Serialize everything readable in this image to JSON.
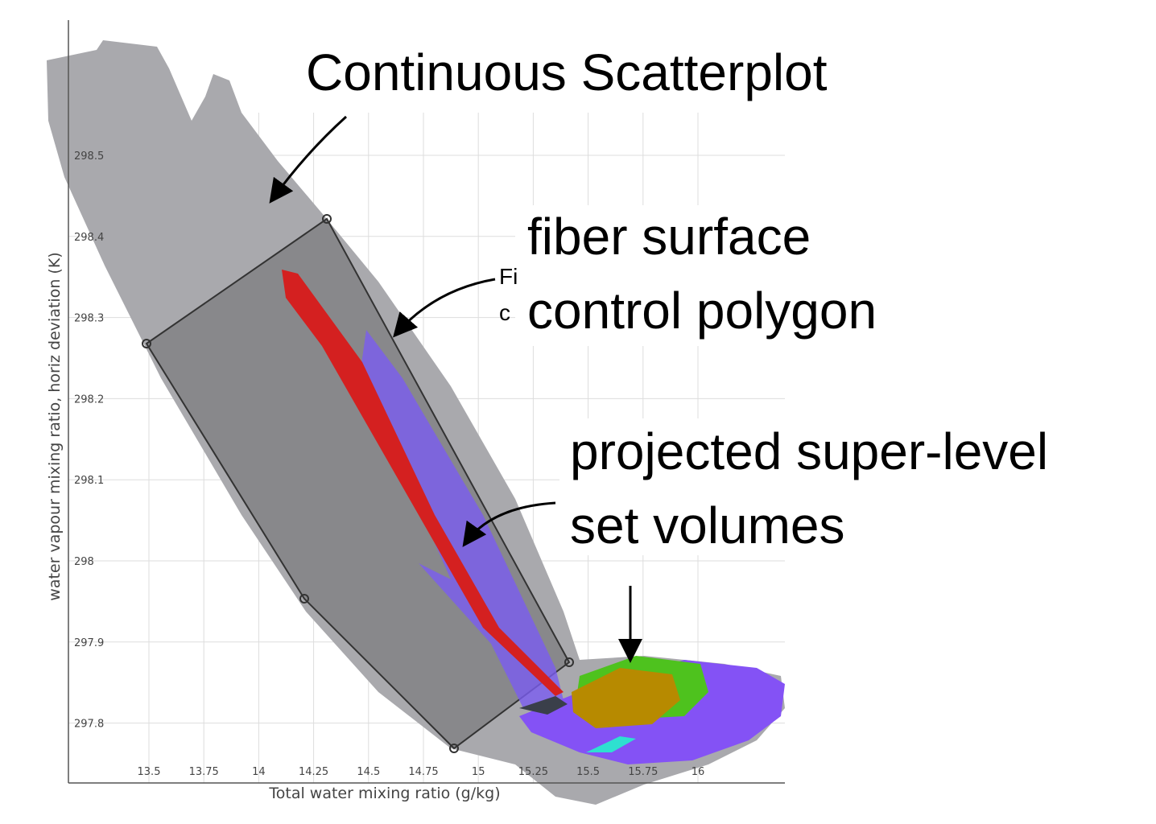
{
  "figure": {
    "x_axis": {
      "label": "Total water mixing ratio (g/kg)",
      "ticks": [
        "13.5",
        "13.75",
        "14",
        "14.25",
        "14.5",
        "14.75",
        "15",
        "15.25",
        "15.5",
        "15.75",
        "16"
      ]
    },
    "y_axis": {
      "label": "water vapour mixing ratio, horiz deviation (K)",
      "ticks": [
        "298.5",
        "298.4",
        "298.3",
        "298.2",
        "298.1",
        "298",
        "297.9",
        "297.8"
      ]
    },
    "hidden_label": [
      "Fi",
      "c"
    ],
    "annotations": {
      "scatterplot": "Continuous Scatterplot",
      "polygon": [
        "fiber surface",
        "control polygon"
      ],
      "volumes": [
        "projected super-level",
        "set volumes"
      ]
    }
  }
}
